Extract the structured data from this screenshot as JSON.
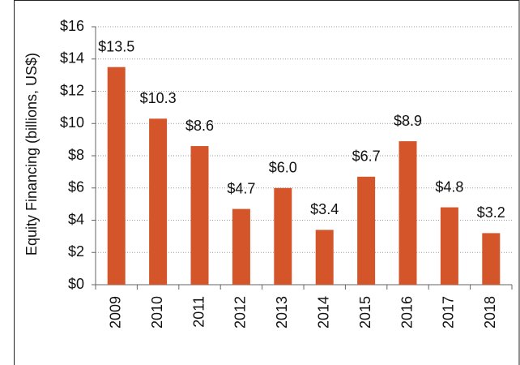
{
  "chart_data": {
    "type": "bar",
    "y_label": "Equity Financing (billions, US$)",
    "categories": [
      "2009",
      "2010",
      "2011",
      "2012",
      "2013",
      "2014",
      "2015",
      "2016",
      "2017",
      "2018"
    ],
    "values": [
      13.5,
      10.3,
      8.6,
      4.7,
      6.0,
      3.4,
      6.7,
      8.9,
      4.8,
      3.2
    ],
    "value_labels": [
      "$13.5",
      "$10.3",
      "$8.6",
      "$4.7",
      "$6.0",
      "$3.4",
      "$6.7",
      "$8.9",
      "$4.8",
      "$3.2"
    ],
    "color": "#d5552b",
    "ylim": [
      0,
      16
    ],
    "yticks": [
      {
        "value": 0,
        "label": "$0"
      },
      {
        "value": 2,
        "label": "$2"
      },
      {
        "value": 4,
        "label": "$4"
      },
      {
        "value": 6,
        "label": "$6"
      },
      {
        "value": 8,
        "label": "$8"
      },
      {
        "value": 10,
        "label": "$10"
      },
      {
        "value": 12,
        "label": "$12"
      },
      {
        "value": 14,
        "label": "$14"
      },
      {
        "value": 16,
        "label": "$16"
      }
    ],
    "grid": true
  }
}
